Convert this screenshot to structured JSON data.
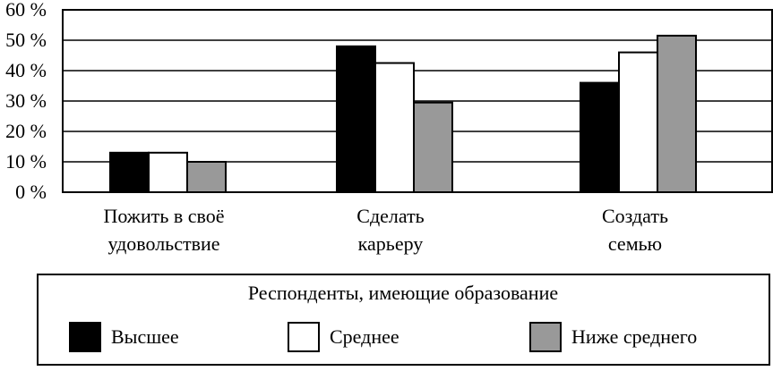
{
  "chart_data": {
    "type": "bar",
    "categories": [
      [
        "Пожить в своё",
        "удовольствие"
      ],
      [
        "Сделать",
        "карьеру"
      ],
      [
        "Создать",
        "семью"
      ]
    ],
    "series": [
      {
        "name": "Высшее",
        "values": [
          13,
          48,
          36
        ],
        "color": "#000000"
      },
      {
        "name": "Среднее",
        "values": [
          13,
          42.5,
          46
        ],
        "color": "#ffffff"
      },
      {
        "name": "Ниже среднего",
        "values": [
          10,
          29.5,
          51.5
        ],
        "color": "#999999"
      }
    ],
    "yticks": [
      {
        "value": 0,
        "label": "0 %"
      },
      {
        "value": 10,
        "label": "10 %"
      },
      {
        "value": 20,
        "label": "20 %"
      },
      {
        "value": 30,
        "label": "30 %"
      },
      {
        "value": 40,
        "label": "40 %"
      },
      {
        "value": 50,
        "label": "50 %"
      },
      {
        "value": 60,
        "label": "60 %"
      }
    ],
    "ylim": [
      0,
      60
    ],
    "grid": true,
    "legend": {
      "title": "Респонденты, имеющие образование",
      "placement": "bottom"
    }
  }
}
